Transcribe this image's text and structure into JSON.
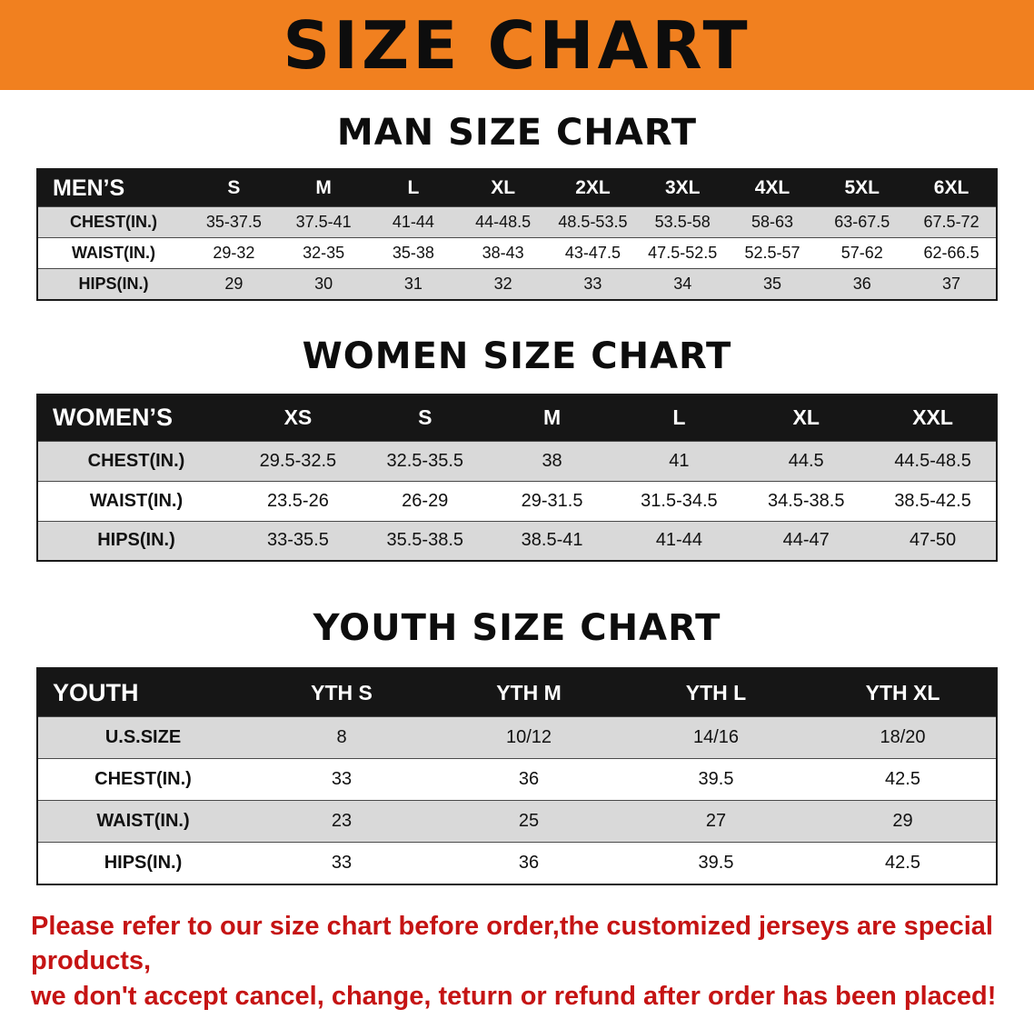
{
  "banner": {
    "title": "SIZE CHART",
    "bg_color": "#F1801F"
  },
  "sections": [
    {
      "heading": "MAN SIZE CHART",
      "table": {
        "header": [
          "MEN’S",
          "S",
          "M",
          "L",
          "XL",
          "2XL",
          "3XL",
          "4XL",
          "5XL",
          "6XL"
        ],
        "rows": [
          [
            "CHEST(IN.)",
            "35-37.5",
            "37.5-41",
            "41-44",
            "44-48.5",
            "48.5-53.5",
            "53.5-58",
            "58-63",
            "63-67.5",
            "67.5-72"
          ],
          [
            "WAIST(IN.)",
            "29-32",
            "32-35",
            "35-38",
            "38-43",
            "43-47.5",
            "47.5-52.5",
            "52.5-57",
            "57-62",
            "62-66.5"
          ],
          [
            "HIPS(IN.)",
            "29",
            "30",
            "31",
            "32",
            "33",
            "34",
            "35",
            "36",
            "37"
          ]
        ]
      }
    },
    {
      "heading": "WOMEN SIZE CHART",
      "table": {
        "header": [
          "WOMEN’S",
          "XS",
          "S",
          "M",
          "L",
          "XL",
          "XXL"
        ],
        "rows": [
          [
            "CHEST(IN.)",
            "29.5-32.5",
            "32.5-35.5",
            "38",
            "41",
            "44.5",
            "44.5-48.5"
          ],
          [
            "WAIST(IN.)",
            "23.5-26",
            "26-29",
            "29-31.5",
            "31.5-34.5",
            "34.5-38.5",
            "38.5-42.5"
          ],
          [
            "HIPS(IN.)",
            "33-35.5",
            "35.5-38.5",
            "38.5-41",
            "41-44",
            "44-47",
            "47-50"
          ]
        ]
      }
    },
    {
      "heading": "YOUTH SIZE CHART",
      "table": {
        "header": [
          "YOUTH",
          "YTH S",
          "YTH M",
          "YTH L",
          "YTH XL"
        ],
        "rows": [
          [
            "U.S.SIZE",
            "8",
            "10/12",
            "14/16",
            "18/20"
          ],
          [
            "CHEST(IN.)",
            "33",
            "36",
            "39.5",
            "42.5"
          ],
          [
            "WAIST(IN.)",
            "23",
            "25",
            "27",
            "29"
          ],
          [
            "HIPS(IN.)",
            "33",
            "36",
            "39.5",
            "42.5"
          ]
        ]
      }
    }
  ],
  "note": {
    "color": "#C51414",
    "lines": [
      "Please refer to our size chart before order,the customized jerseys are special products,",
      "we don't accept cancel, change, teturn or refund after order has been placed!"
    ]
  }
}
